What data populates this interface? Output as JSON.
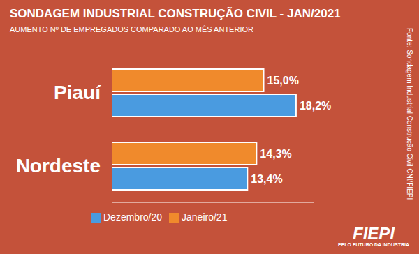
{
  "chart_data": {
    "type": "bar",
    "title": "SONDAGEM INDUSTRIAL CONSTRUÇÃO CIVIL - JAN/2021",
    "subtitle": "AUMENTO Nº DE EMPREGADOS COMPARADO AO MÊS ANTERIOR",
    "orientation": "horizontal",
    "categories": [
      "Piauí",
      "Nordeste"
    ],
    "series": [
      {
        "name": "Janeiro/21",
        "color": "#f08a2c",
        "values": [
          15.0,
          14.3
        ],
        "value_labels": [
          "15,0%",
          "14,3%"
        ]
      },
      {
        "name": "Dezembro/20",
        "color": "#4a9be0",
        "values": [
          18.2,
          13.4
        ],
        "value_labels": [
          "18,2%",
          "13,4%"
        ]
      }
    ],
    "xlim": [
      0,
      20
    ],
    "data_labels": true,
    "tick_labels": "y",
    "legend": "bottom",
    "source": "Fonte: Sondagem Industrial Construção Civil CNI/FIEPI",
    "logo": {
      "name": "FIEPI",
      "tagline": "PELO FUTURO DA INDUSTRIA"
    }
  }
}
